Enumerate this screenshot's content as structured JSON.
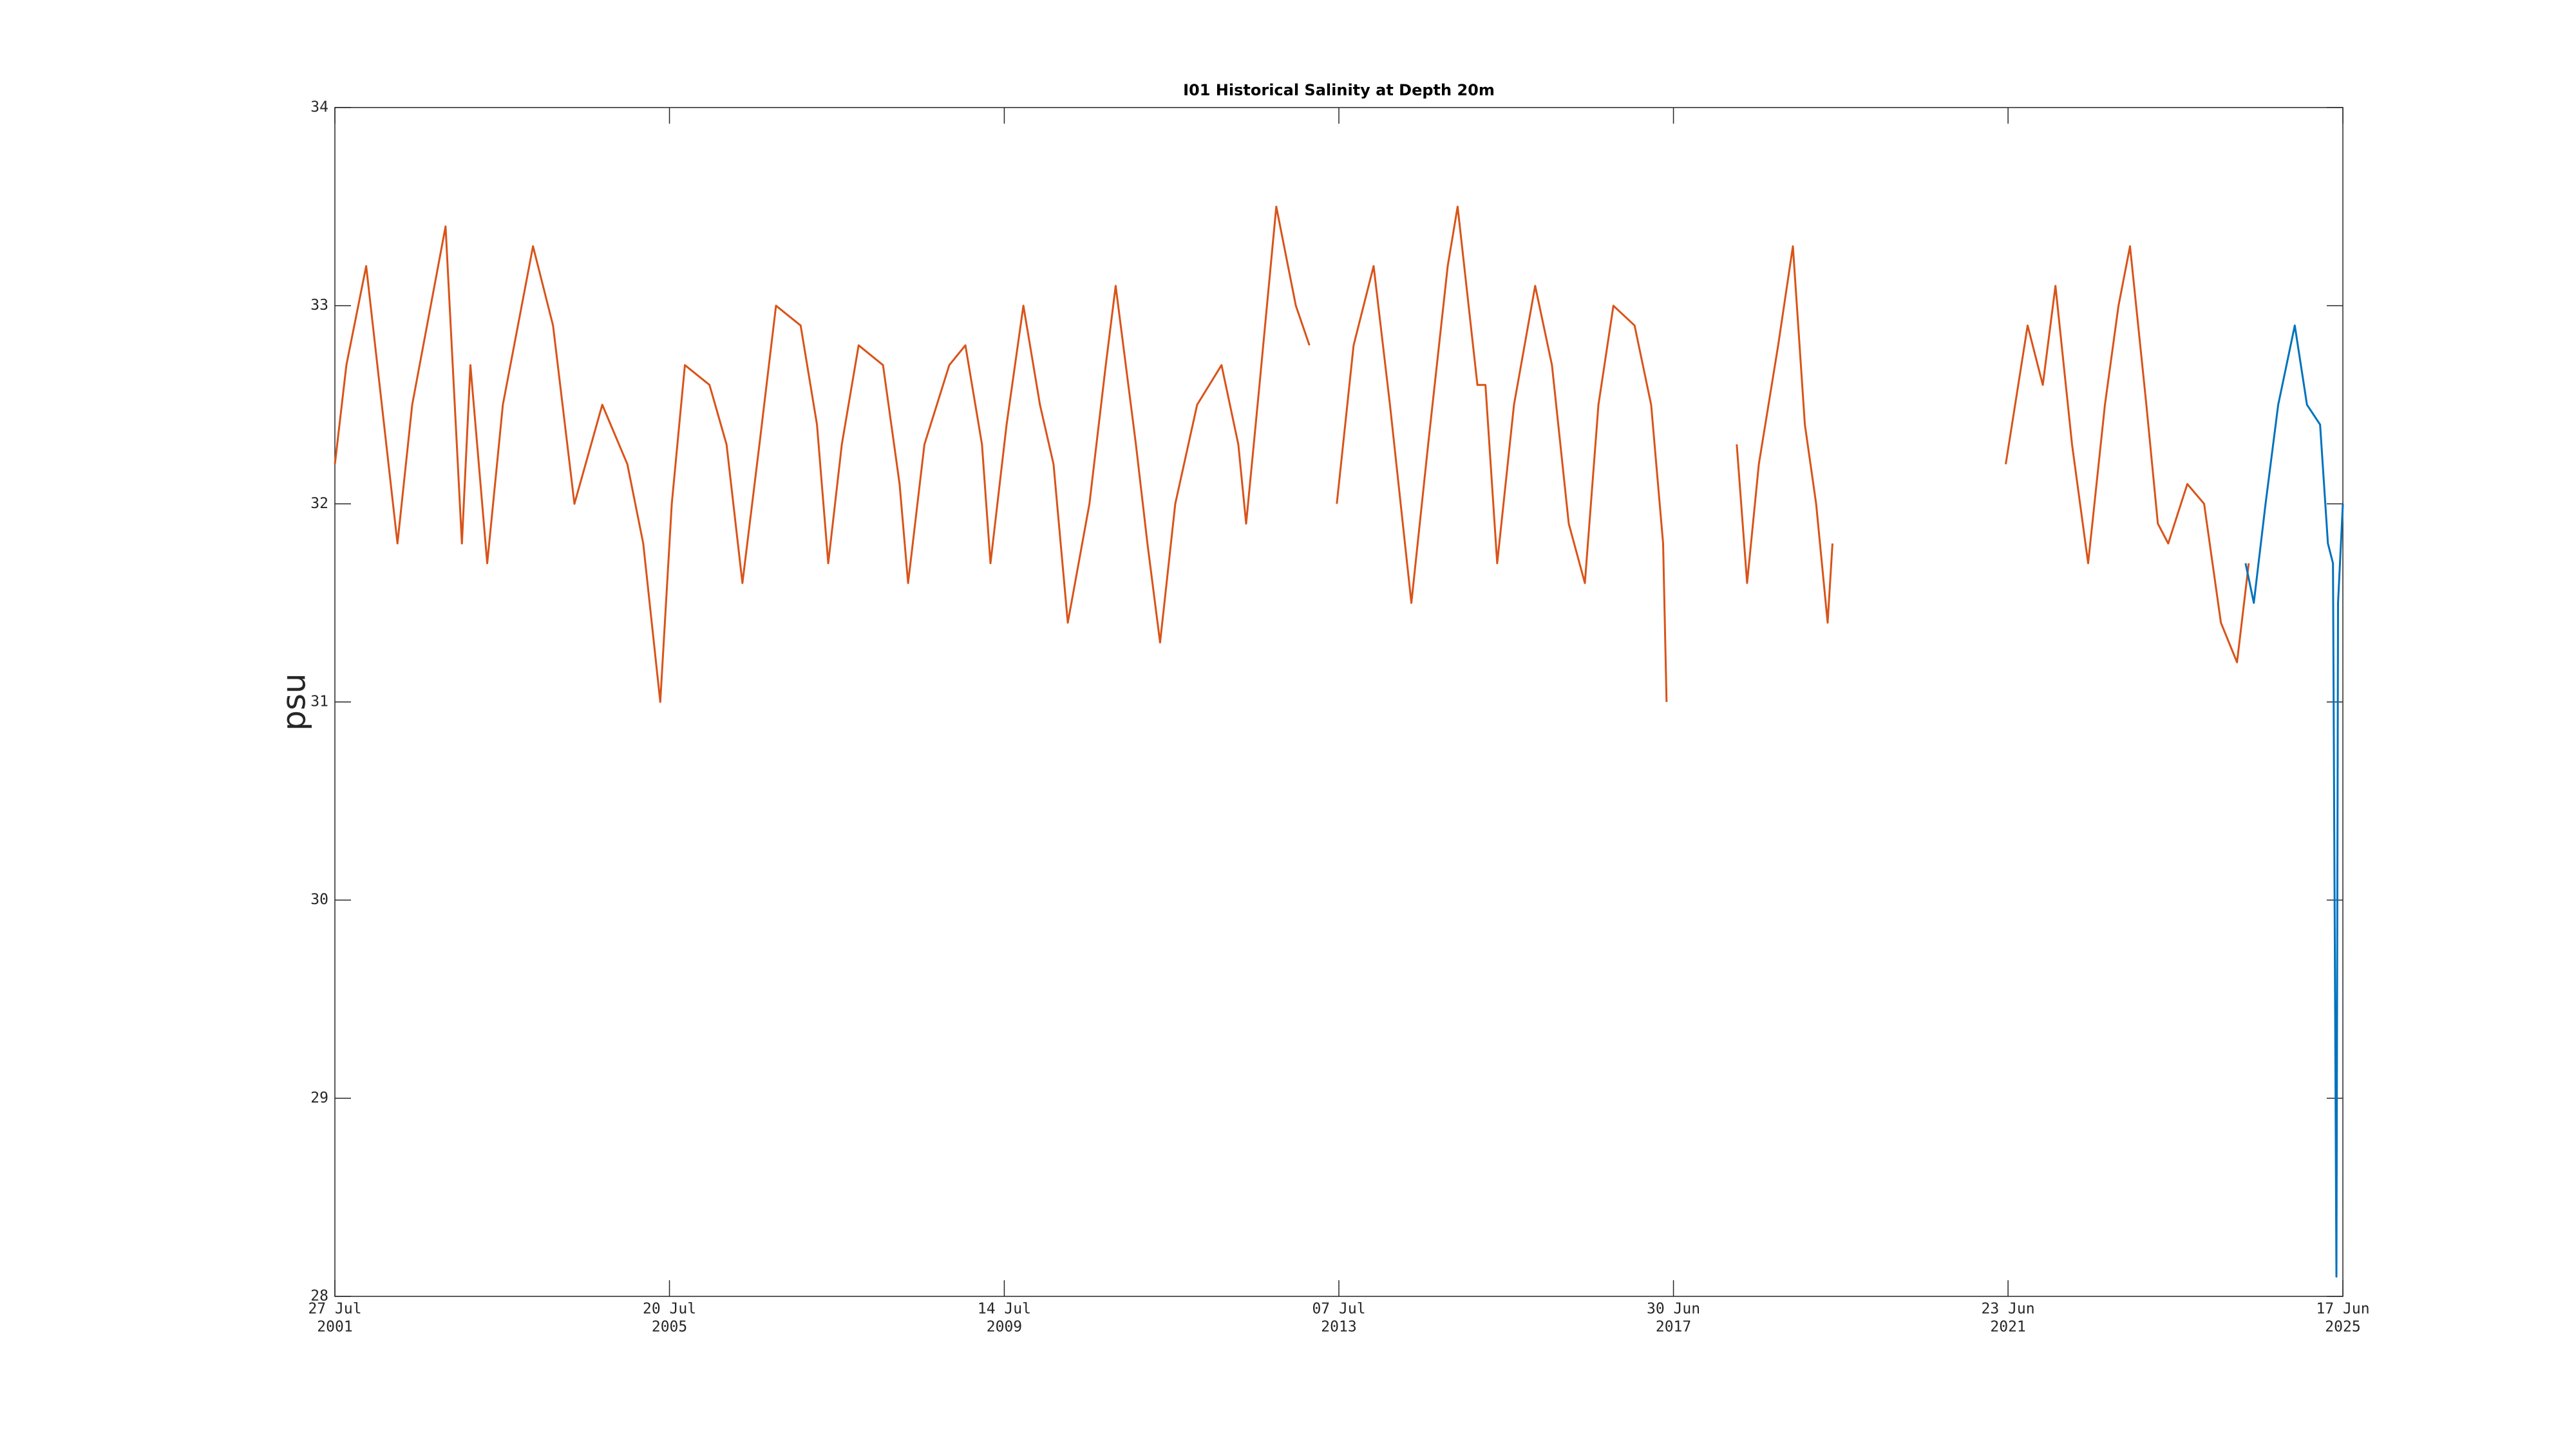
{
  "chart_data": {
    "type": "line",
    "title": "I01 Historical Salinity at Depth 20m",
    "ylabel": "psu",
    "xlim": [
      "2001-07-27",
      "2025-06-17"
    ],
    "xticks": [
      {
        "value": "2001-07-27",
        "label": [
          "27 Jul",
          "2001"
        ]
      },
      {
        "value": "2005-07-20",
        "label": [
          "20 Jul",
          "2005"
        ]
      },
      {
        "value": "2009-07-14",
        "label": [
          "14 Jul",
          "2009"
        ]
      },
      {
        "value": "2013-07-07",
        "label": [
          "07 Jul",
          "2013"
        ]
      },
      {
        "value": "2017-06-30",
        "label": [
          "30 Jun",
          "2017"
        ]
      },
      {
        "value": "2021-06-23",
        "label": [
          "23 Jun",
          "2021"
        ]
      },
      {
        "value": "2025-06-17",
        "label": [
          "17 Jun",
          "2025"
        ]
      }
    ],
    "ylim": [
      28,
      34
    ],
    "yticks": [
      28,
      29,
      30,
      31,
      32,
      33,
      34
    ],
    "grid": false,
    "series": [
      {
        "color": "#d95319",
        "x": [
          "2001-07-27",
          "2001-09-15",
          "2001-12-10",
          "2002-04-25",
          "2002-06-28",
          "2002-11-20",
          "2003-01-30",
          "2003-03-08",
          "2003-05-20",
          "2003-07-27",
          "2003-12-05",
          "2004-03-01",
          "2004-06-02",
          "2004-10-01",
          "2005-01-18",
          "2005-03-28",
          "2005-06-10",
          "2005-07-30",
          "2005-09-25",
          "2006-01-10",
          "2006-03-25",
          "2006-06-02",
          "2006-08-15",
          "2006-10-26",
          "2007-02-10",
          "2007-04-22",
          "2007-06-10",
          "2007-08-08",
          "2007-10-20",
          "2008-02-03",
          "2008-04-15",
          "2008-05-22",
          "2008-08-01",
          "2008-11-17",
          "2009-01-26",
          "2009-04-08",
          "2009-05-15",
          "2009-07-24",
          "2009-10-05",
          "2009-12-16",
          "2010-02-13",
          "2010-04-16",
          "2010-07-19",
          "2010-09-28",
          "2010-11-10",
          "2011-02-06",
          "2011-03-28",
          "2011-05-22",
          "2011-07-27",
          "2011-10-30",
          "2012-02-13",
          "2012-04-26",
          "2012-05-30",
          "2012-07-27",
          "2012-10-08",
          "2013-01-01",
          "2013-03-01",
          "2013-04-15",
          "2013-06-28",
          "2013-09-09",
          "2013-12-05",
          "2014-02-14",
          "2014-05-18",
          "2014-07-30",
          "2014-10-23",
          "2014-12-05",
          "2015-03-01",
          "2015-04-05",
          "2015-05-26",
          "2015-08-07",
          "2015-11-07",
          "2016-01-19",
          "2016-04-01",
          "2016-06-10",
          "2016-08-08",
          "2016-10-12",
          "2017-01-12",
          "2017-03-25",
          "2017-05-16",
          "2017-05-31",
          "2017-09-01",
          "2018-04-01",
          "2018-05-16",
          "2018-07-06",
          "2018-09-28",
          "2018-12-01",
          "2019-01-22",
          "2019-03-12",
          "2019-05-01",
          "2019-05-22",
          "2020-06-01",
          "2021-06-13",
          "2021-09-16",
          "2021-11-21",
          "2022-01-15",
          "2022-03-28",
          "2022-06-06",
          "2022-08-18",
          "2022-10-16",
          "2022-12-05",
          "2023-02-14",
          "2023-04-05",
          "2023-05-20",
          "2023-08-11",
          "2023-10-23",
          "2024-01-04",
          "2024-03-14",
          "2024-05-04"
        ],
        "values": [
          32.2,
          32.7,
          33.2,
          31.8,
          32.5,
          33.4,
          31.8,
          32.7,
          31.7,
          32.5,
          33.3,
          32.9,
          32.0,
          32.5,
          32.2,
          31.8,
          31.0,
          32.0,
          32.7,
          32.6,
          32.3,
          31.6,
          32.3,
          33.0,
          32.9,
          32.4,
          31.7,
          32.3,
          32.8,
          32.7,
          32.1,
          31.6,
          32.3,
          32.7,
          32.8,
          32.3,
          31.7,
          32.4,
          33.0,
          32.5,
          32.2,
          31.4,
          32.0,
          32.7,
          33.1,
          32.3,
          31.8,
          31.3,
          32.0,
          32.5,
          32.7,
          32.3,
          31.9,
          32.6,
          33.5,
          33.0,
          32.8,
          null,
          32.0,
          32.8,
          33.2,
          32.5,
          31.5,
          32.3,
          33.2,
          33.5,
          32.6,
          32.6,
          31.7,
          32.5,
          33.1,
          32.7,
          31.9,
          31.6,
          32.5,
          33.0,
          32.9,
          32.5,
          31.8,
          31.0,
          null,
          32.3,
          31.6,
          32.2,
          32.8,
          33.3,
          32.4,
          32.0,
          31.4,
          31.8,
          null,
          32.2,
          32.9,
          32.6,
          33.1,
          32.3,
          31.7,
          32.5,
          33.0,
          33.3,
          32.5,
          31.9,
          31.8,
          32.1,
          32.0,
          31.4,
          31.2,
          31.7
        ]
      },
      {
        "color": "#0072bd",
        "x": [
          "2024-04-20",
          "2024-05-26",
          "2024-07-16",
          "2024-09-09",
          "2024-11-20",
          "2025-01-12",
          "2025-03-10",
          "2025-04-13",
          "2025-05-05",
          "2025-05-20",
          "2025-05-27",
          "2025-06-17"
        ],
        "values": [
          31.7,
          31.5,
          32.0,
          32.5,
          32.9,
          32.5,
          32.4,
          31.8,
          31.7,
          28.1,
          31.5,
          32.0
        ]
      }
    ]
  }
}
